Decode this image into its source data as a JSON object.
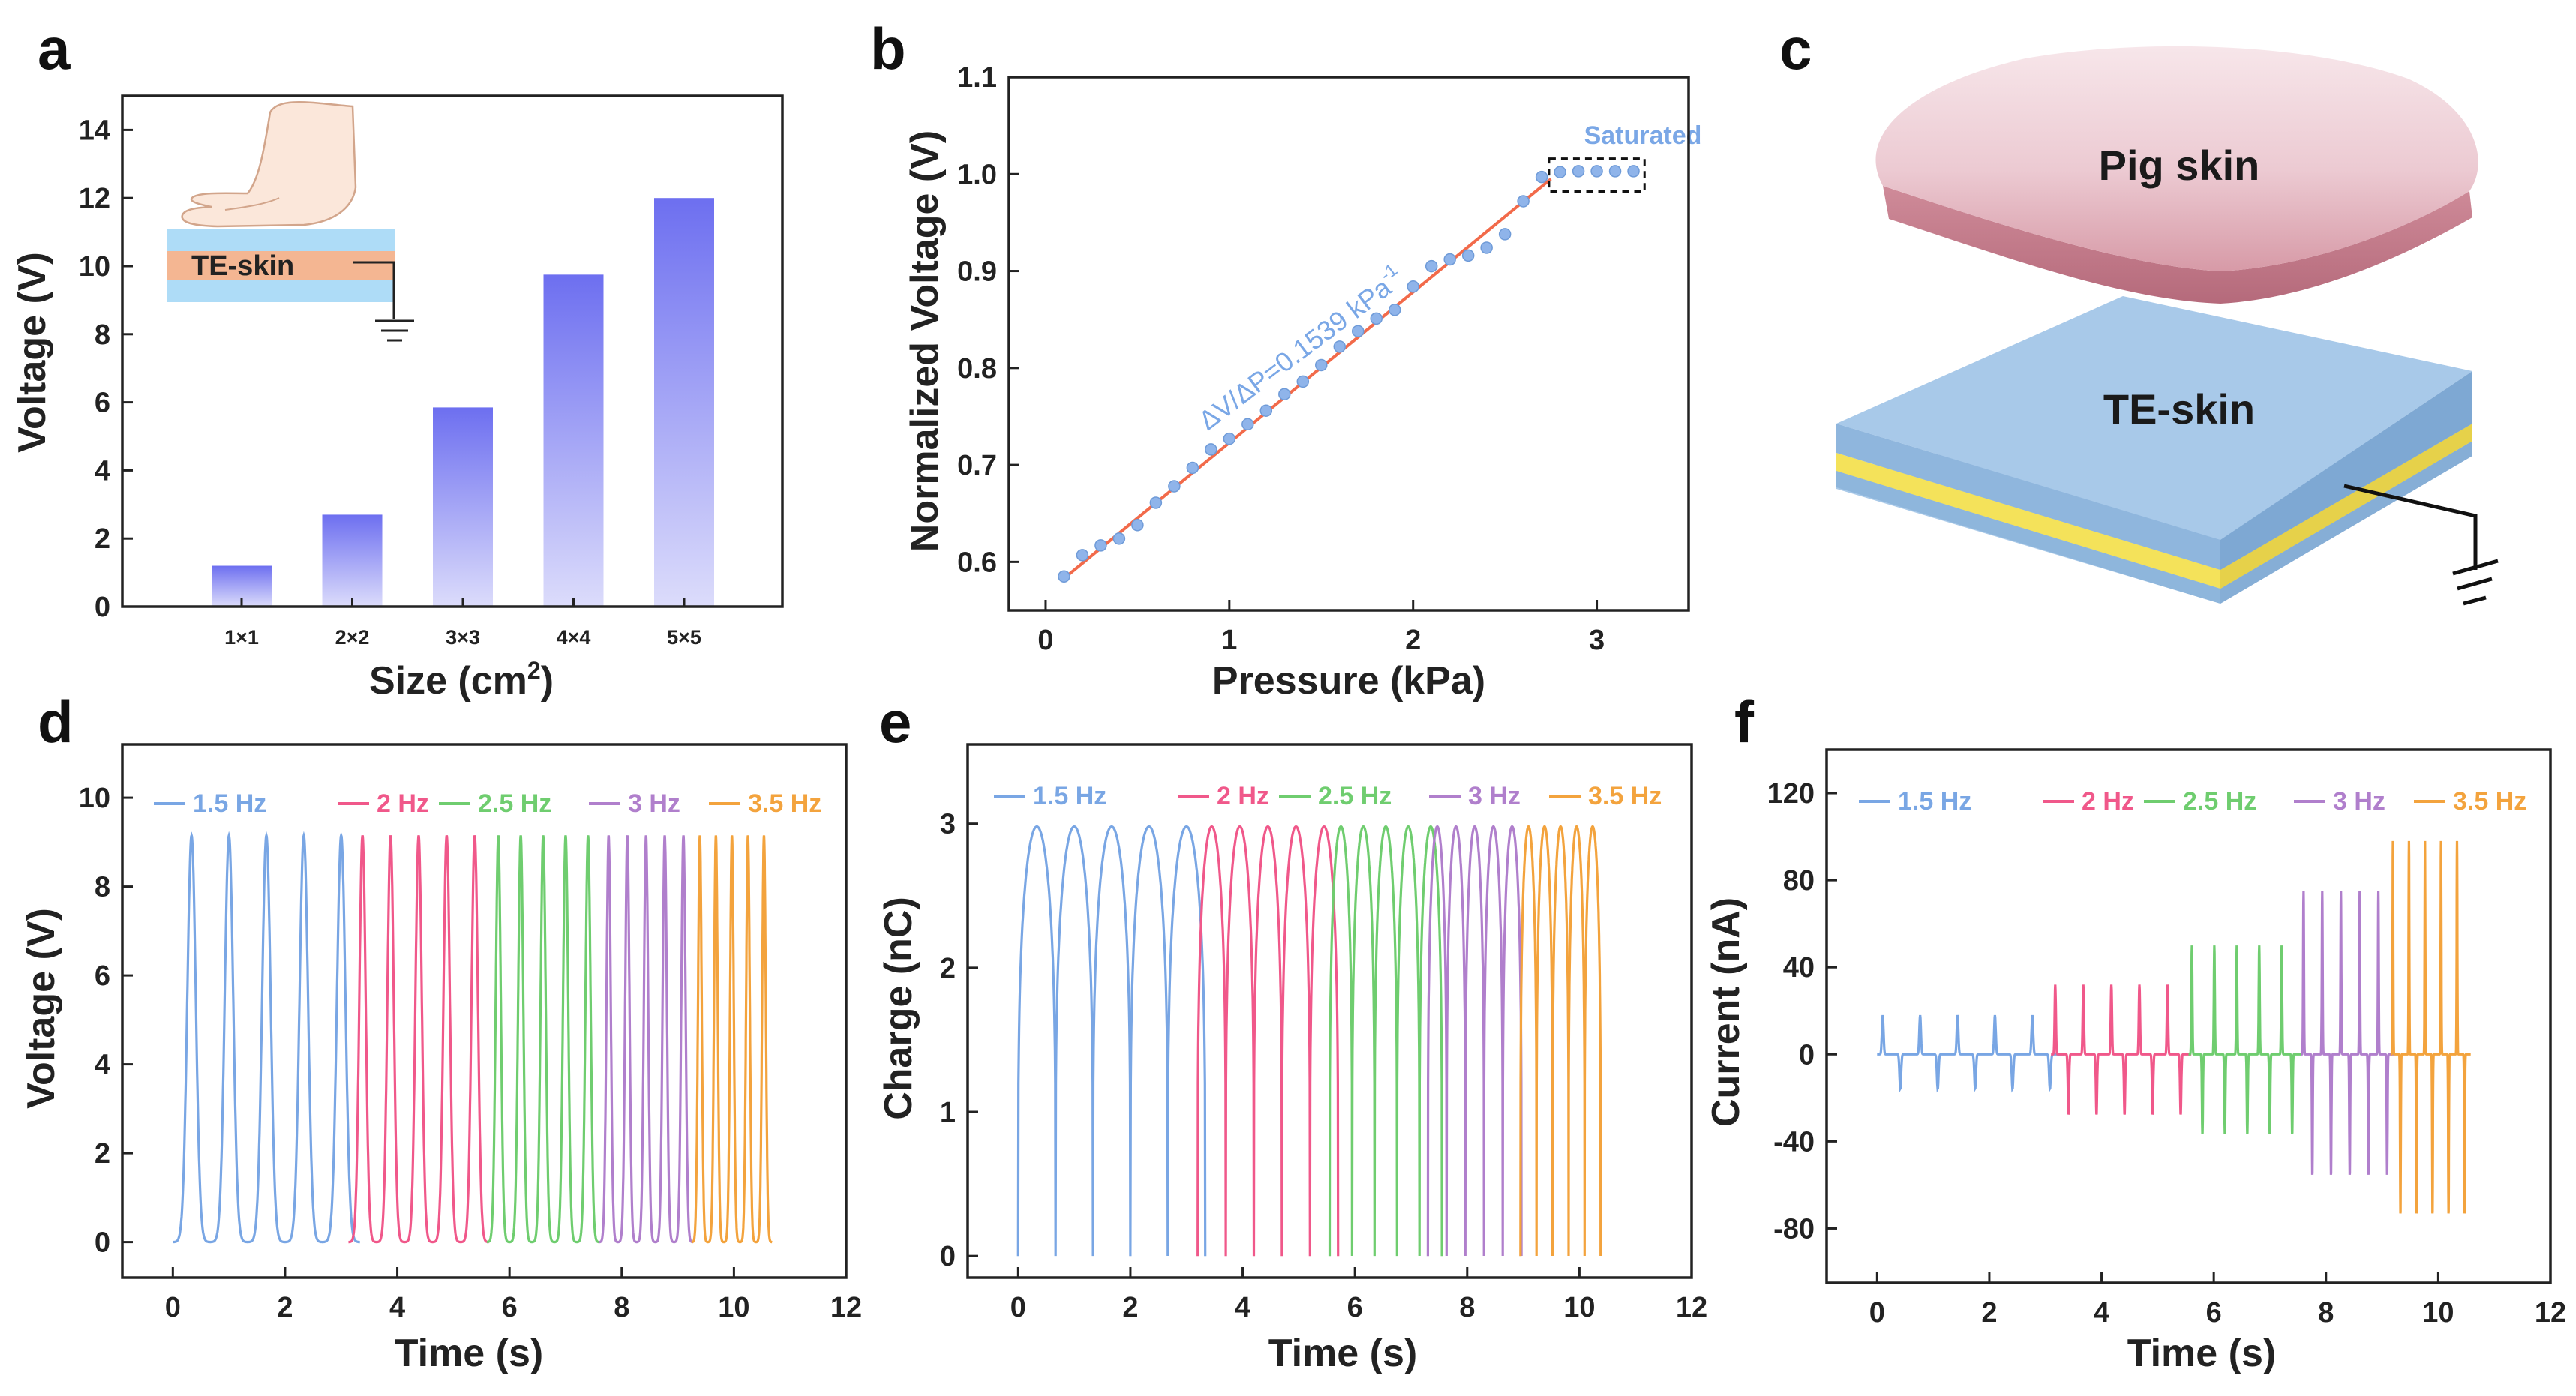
{
  "colors": {
    "series": [
      "#79a6e4",
      "#f0588a",
      "#6fcd6f",
      "#b07fcc",
      "#f3a33d"
    ],
    "bar_top": "#6d6ff0",
    "bar_bottom": "#dcdcfb",
    "fit_line": "#f26a4a",
    "scatter": "#8fb4ea",
    "annotation": "#7aa7e6"
  },
  "panels": {
    "a": "a",
    "b": "b",
    "c": "c",
    "d": "d",
    "e": "e",
    "f": "f"
  },
  "units": {
    "size_xlabel_base": "Size (cm",
    "size_xlabel_sup": "2",
    "size_xlabel_end": ")",
    "slope_base": "ΔV/ΔP=0.1539 kPa",
    "slope_sup": "-1"
  },
  "illustration": {
    "te_skin_inset": "TE-skin",
    "pig_skin": "Pig skin",
    "te_skin": "TE-skin"
  },
  "chart_data": [
    {
      "id": "a",
      "type": "bar",
      "title": "",
      "categories": [
        "1×1",
        "2×2",
        "3×3",
        "4×4",
        "5×5"
      ],
      "values": [
        1.2,
        2.7,
        5.85,
        9.75,
        12.0
      ],
      "xlabel": "Size (cm2)",
      "ylabel": "Voltage (V)",
      "ylim": [
        0,
        15
      ],
      "yticks": [
        0,
        2,
        4,
        6,
        8,
        10,
        12,
        14
      ],
      "ytick_labels": [
        "0",
        "2",
        "4",
        "6",
        "8",
        "10",
        "12",
        "14"
      ]
    },
    {
      "id": "b",
      "type": "scatter",
      "xlabel": "Pressure (kPa)",
      "ylabel": "Normalized Voltage (V)",
      "xlim": [
        -0.2,
        3.5
      ],
      "ylim": [
        0.55,
        1.1
      ],
      "xticks": [
        0,
        1,
        2,
        3
      ],
      "xtick_labels": [
        "0",
        "1",
        "2",
        "3"
      ],
      "yticks": [
        0.6,
        0.7,
        0.8,
        0.9,
        1.0,
        1.1
      ],
      "ytick_labels": [
        "0.6",
        "0.7",
        "0.8",
        "0.9",
        "1.0",
        "1.1"
      ],
      "points": [
        [
          0.1,
          0.585
        ],
        [
          0.2,
          0.607
        ],
        [
          0.3,
          0.617
        ],
        [
          0.4,
          0.624
        ],
        [
          0.5,
          0.638
        ],
        [
          0.6,
          0.661
        ],
        [
          0.7,
          0.678
        ],
        [
          0.8,
          0.697
        ],
        [
          0.9,
          0.716
        ],
        [
          1.0,
          0.727
        ],
        [
          1.1,
          0.742
        ],
        [
          1.2,
          0.756
        ],
        [
          1.3,
          0.773
        ],
        [
          1.4,
          0.786
        ],
        [
          1.5,
          0.803
        ],
        [
          1.6,
          0.822
        ],
        [
          1.7,
          0.838
        ],
        [
          1.8,
          0.851
        ],
        [
          1.9,
          0.86
        ],
        [
          2.0,
          0.884
        ],
        [
          2.1,
          0.905
        ],
        [
          2.2,
          0.912
        ],
        [
          2.3,
          0.916
        ],
        [
          2.4,
          0.924
        ],
        [
          2.5,
          0.938
        ],
        [
          2.6,
          0.972
        ],
        [
          2.7,
          0.997
        ],
        [
          2.8,
          1.002
        ],
        [
          2.9,
          1.003
        ],
        [
          3.0,
          1.003
        ],
        [
          3.1,
          1.003
        ],
        [
          3.2,
          1.003
        ]
      ],
      "fit": {
        "x0": 0.1,
        "y0": 0.583,
        "x1": 2.75,
        "y1": 0.995
      },
      "slope_text": "ΔV/ΔP=0.1539 kPa-1",
      "saturated_label": "Saturated",
      "saturated_range": {
        "x": [
          2.74,
          3.26
        ],
        "y": [
          0.982,
          1.016
        ]
      }
    },
    {
      "id": "d",
      "type": "line",
      "xlabel": "Time (s)",
      "ylabel": "Voltage (V)",
      "xlim": [
        -0.9,
        12
      ],
      "ylim": [
        -0.8,
        11.2
      ],
      "xticks": [
        0,
        2,
        4,
        6,
        8,
        10,
        12
      ],
      "xtick_labels": [
        "0",
        "2",
        "4",
        "6",
        "8",
        "10",
        "12"
      ],
      "yticks": [
        0,
        2,
        4,
        6,
        8,
        10
      ],
      "ytick_labels": [
        "0",
        "2",
        "4",
        "6",
        "8",
        "10"
      ],
      "legend": [
        "1.5 Hz",
        "2 Hz",
        "2.5 Hz",
        "3 Hz",
        "3.5 Hz"
      ],
      "peak": 9.15,
      "segments": [
        {
          "name": "1.5 Hz",
          "start": 0.0,
          "freq": 1.5,
          "cycles": 5
        },
        {
          "name": "2 Hz",
          "start": 3.13,
          "freq": 2.0,
          "cycles": 5
        },
        {
          "name": "2.5 Hz",
          "start": 5.6,
          "freq": 2.5,
          "cycles": 5
        },
        {
          "name": "3 Hz",
          "start": 7.6,
          "freq": 3.0,
          "cycles": 5
        },
        {
          "name": "3.5 Hz",
          "start": 9.25,
          "freq": 3.5,
          "cycles": 5
        }
      ]
    },
    {
      "id": "e",
      "type": "line",
      "xlabel": "Time (s)",
      "ylabel": "Charge (nC)",
      "xlim": [
        -0.9,
        12
      ],
      "ylim": [
        -0.15,
        3.55
      ],
      "xticks": [
        0,
        2,
        4,
        6,
        8,
        10,
        12
      ],
      "xtick_labels": [
        "0",
        "2",
        "4",
        "6",
        "8",
        "10",
        "12"
      ],
      "yticks": [
        0,
        1,
        2,
        3
      ],
      "ytick_labels": [
        "0",
        "1",
        "2",
        "3"
      ],
      "legend": [
        "1.5 Hz",
        "2 Hz",
        "2.5 Hz",
        "3 Hz",
        "3.5 Hz"
      ],
      "peak": 2.98,
      "segments": [
        {
          "name": "1.5 Hz",
          "start": 0.0,
          "freq": 1.5,
          "cycles": 5
        },
        {
          "name": "2 Hz",
          "start": 3.2,
          "freq": 2.0,
          "cycles": 5
        },
        {
          "name": "2.5 Hz",
          "start": 5.55,
          "freq": 2.5,
          "cycles": 5
        },
        {
          "name": "3 Hz",
          "start": 7.3,
          "freq": 3.0,
          "cycles": 5
        },
        {
          "name": "3.5 Hz",
          "start": 8.95,
          "freq": 3.5,
          "cycles": 5
        }
      ]
    },
    {
      "id": "f",
      "type": "line",
      "xlabel": "Time (s)",
      "ylabel": "Current (nA)",
      "xlim": [
        -0.9,
        12
      ],
      "ylim": [
        -105,
        140
      ],
      "xticks": [
        0,
        2,
        4,
        6,
        8,
        10,
        12
      ],
      "xtick_labels": [
        "0",
        "2",
        "4",
        "6",
        "8",
        "10",
        "12"
      ],
      "yticks": [
        -80,
        -40,
        0,
        40,
        80,
        120
      ],
      "ytick_labels": [
        "-80",
        "-40",
        "0",
        "40",
        "80",
        "120"
      ],
      "legend": [
        "1.5 Hz",
        "2 Hz",
        "2.5 Hz",
        "3 Hz",
        "3.5 Hz"
      ],
      "segments": [
        {
          "name": "1.5 Hz",
          "start": 0.0,
          "freq": 1.5,
          "cycles": 5,
          "pos": 18,
          "neg": -16
        },
        {
          "name": "2 Hz",
          "start": 3.1,
          "freq": 2.0,
          "cycles": 5,
          "pos": 32,
          "neg": -28
        },
        {
          "name": "2.5 Hz",
          "start": 5.55,
          "freq": 2.5,
          "cycles": 5,
          "pos": 50,
          "neg": -37
        },
        {
          "name": "3 Hz",
          "start": 7.55,
          "freq": 3.0,
          "cycles": 5,
          "pos": 75,
          "neg": -56
        },
        {
          "name": "3.5 Hz",
          "start": 9.15,
          "freq": 3.5,
          "cycles": 5,
          "pos": 98,
          "neg": -74
        }
      ]
    }
  ]
}
